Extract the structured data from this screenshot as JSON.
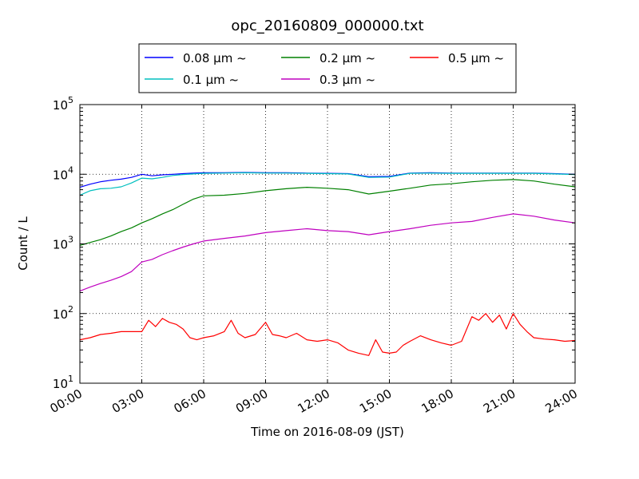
{
  "chart_data": {
    "type": "line",
    "title": "opc_20160809_000000.txt",
    "xlabel": "Time on 2016-08-09 (JST)",
    "ylabel": "Count / L",
    "yscale": "log",
    "ylim": [
      10,
      100000
    ],
    "xlim": [
      "00:00",
      "24:00"
    ],
    "x_ticks": [
      "00:00",
      "03:00",
      "06:00",
      "09:00",
      "12:00",
      "15:00",
      "18:00",
      "21:00",
      "24:00"
    ],
    "y_ticks": [
      {
        "base": "10",
        "exp": "1"
      },
      {
        "base": "10",
        "exp": "2"
      },
      {
        "base": "10",
        "exp": "3"
      },
      {
        "base": "10",
        "exp": "4"
      },
      {
        "base": "10",
        "exp": "5"
      }
    ],
    "grid": true,
    "legend_position": "top",
    "series": [
      {
        "name": "0.08 μm ~",
        "color": "#0000ff",
        "x": [
          "00:00",
          "00:30",
          "01:00",
          "01:30",
          "02:00",
          "02:30",
          "03:00",
          "03:30",
          "04:00",
          "04:30",
          "05:00",
          "05:30",
          "06:00",
          "07:00",
          "08:00",
          "09:00",
          "10:00",
          "11:00",
          "12:00",
          "13:00",
          "14:00",
          "15:00",
          "16:00",
          "17:00",
          "18:00",
          "19:00",
          "20:00",
          "21:00",
          "22:00",
          "23:00",
          "24:00"
        ],
        "y": [
          6500,
          7200,
          7800,
          8200,
          8500,
          9000,
          10000,
          9500,
          9800,
          10000,
          10200,
          10400,
          10500,
          10500,
          10600,
          10500,
          10500,
          10400,
          10300,
          10200,
          9200,
          9300,
          10400,
          10500,
          10400,
          10400,
          10400,
          10400,
          10400,
          10200,
          10000
        ]
      },
      {
        "name": "0.1 μm ~",
        "color": "#00bfbf",
        "x": [
          "00:00",
          "00:30",
          "01:00",
          "01:30",
          "02:00",
          "02:30",
          "03:00",
          "03:30",
          "04:00",
          "04:30",
          "05:00",
          "05:30",
          "06:00",
          "07:00",
          "08:00",
          "09:00",
          "10:00",
          "11:00",
          "12:00",
          "13:00",
          "14:00",
          "15:00",
          "16:00",
          "17:00",
          "18:00",
          "19:00",
          "20:00",
          "21:00",
          "22:00",
          "23:00",
          "24:00"
        ],
        "y": [
          5000,
          5800,
          6200,
          6300,
          6600,
          7500,
          8800,
          8600,
          9000,
          9600,
          9900,
          10100,
          10300,
          10400,
          10500,
          10400,
          10400,
          10300,
          10200,
          10100,
          9000,
          9100,
          10300,
          10400,
          10300,
          10300,
          10300,
          10300,
          10300,
          10100,
          9900
        ]
      },
      {
        "name": "0.2 μm ~",
        "color": "#008000",
        "x": [
          "00:00",
          "00:30",
          "01:00",
          "01:30",
          "02:00",
          "02:30",
          "03:00",
          "03:30",
          "04:00",
          "04:30",
          "05:00",
          "05:30",
          "06:00",
          "07:00",
          "08:00",
          "09:00",
          "10:00",
          "11:00",
          "12:00",
          "13:00",
          "14:00",
          "15:00",
          "16:00",
          "17:00",
          "18:00",
          "19:00",
          "20:00",
          "21:00",
          "22:00",
          "23:00",
          "24:00"
        ],
        "y": [
          950,
          1050,
          1150,
          1300,
          1500,
          1700,
          2000,
          2300,
          2700,
          3100,
          3700,
          4400,
          4900,
          5000,
          5300,
          5800,
          6200,
          6500,
          6300,
          6000,
          5200,
          5700,
          6300,
          7000,
          7300,
          7800,
          8200,
          8400,
          8000,
          7200,
          6600
        ]
      },
      {
        "name": "0.3 μm ~",
        "color": "#bf00bf",
        "x": [
          "00:00",
          "00:30",
          "01:00",
          "01:30",
          "02:00",
          "02:30",
          "03:00",
          "03:30",
          "04:00",
          "04:30",
          "05:00",
          "05:30",
          "06:00",
          "07:00",
          "08:00",
          "09:00",
          "10:00",
          "11:00",
          "12:00",
          "13:00",
          "14:00",
          "15:00",
          "16:00",
          "17:00",
          "18:00",
          "19:00",
          "20:00",
          "21:00",
          "22:00",
          "23:00",
          "24:00"
        ],
        "y": [
          210,
          240,
          270,
          300,
          340,
          400,
          550,
          600,
          700,
          800,
          900,
          1000,
          1100,
          1200,
          1300,
          1450,
          1550,
          1650,
          1550,
          1500,
          1350,
          1500,
          1650,
          1850,
          2000,
          2100,
          2400,
          2700,
          2500,
          2200,
          2000
        ]
      },
      {
        "name": "0.5 μm ~",
        "color": "#ff0000",
        "x": [
          "00:00",
          "00:30",
          "01:00",
          "01:30",
          "02:00",
          "02:30",
          "03:00",
          "03:20",
          "03:40",
          "04:00",
          "04:20",
          "04:40",
          "05:00",
          "05:20",
          "05:40",
          "06:00",
          "06:30",
          "07:00",
          "07:20",
          "07:40",
          "08:00",
          "08:30",
          "09:00",
          "09:20",
          "09:40",
          "10:00",
          "10:30",
          "11:00",
          "11:30",
          "12:00",
          "12:30",
          "13:00",
          "13:30",
          "14:00",
          "14:20",
          "14:40",
          "15:00",
          "15:20",
          "15:40",
          "16:00",
          "16:30",
          "17:00",
          "17:30",
          "18:00",
          "18:30",
          "19:00",
          "19:20",
          "19:40",
          "20:00",
          "20:20",
          "20:40",
          "21:00",
          "21:20",
          "21:40",
          "22:00",
          "22:30",
          "23:00",
          "23:30",
          "24:00"
        ],
        "y": [
          42,
          45,
          50,
          52,
          55,
          55,
          55,
          80,
          65,
          85,
          75,
          70,
          60,
          45,
          42,
          45,
          48,
          55,
          80,
          52,
          45,
          50,
          75,
          50,
          48,
          45,
          52,
          42,
          40,
          42,
          38,
          30,
          27,
          25,
          42,
          28,
          27,
          28,
          35,
          40,
          48,
          42,
          38,
          35,
          40,
          90,
          80,
          100,
          75,
          95,
          60,
          100,
          70,
          55,
          45,
          43,
          42,
          40,
          41
        ]
      }
    ]
  }
}
